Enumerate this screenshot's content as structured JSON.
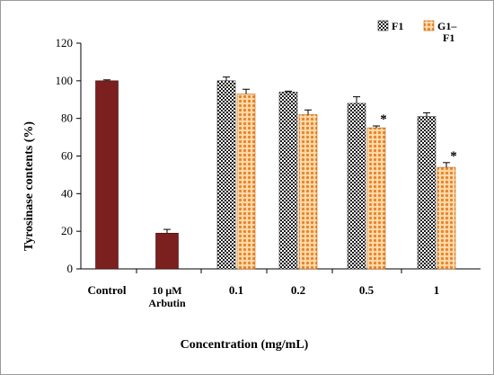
{
  "chart_data": {
    "type": "bar",
    "xlabel": "Concentration (mg/mL)",
    "ylabel": "Tyrosinase contents (%)",
    "ylim": [
      0,
      120
    ],
    "yticks": [
      0,
      20,
      40,
      60,
      80,
      100,
      120
    ],
    "controls": [
      {
        "label": "Control",
        "value": 100,
        "error": 0.5
      },
      {
        "label": "10 μM Arbutin",
        "label_lines": [
          "10 μM",
          "Arbutin"
        ],
        "value": 19,
        "error": 2
      }
    ],
    "categories": [
      "0.1",
      "0.2",
      "0.5",
      "1"
    ],
    "series": [
      {
        "name": "F1",
        "values": [
          100,
          94,
          88,
          81
        ],
        "errors": [
          2,
          0.5,
          3.5,
          2
        ]
      },
      {
        "name": "G1–F1",
        "name_lines": [
          "G1–",
          "F1"
        ],
        "values": [
          93,
          82,
          75,
          54
        ],
        "errors": [
          2.5,
          2.5,
          1,
          2.5
        ]
      }
    ],
    "significance_marker": "*",
    "significance": [
      {
        "series": "G1–F1",
        "category": "0.5"
      },
      {
        "series": "G1–F1",
        "category": "1"
      }
    ],
    "legend": "top-right",
    "grid": false,
    "colors": {
      "control": "#7b1f1f",
      "f1_pattern": "checkered black/white",
      "g1f1_pattern": "orange dots"
    }
  }
}
